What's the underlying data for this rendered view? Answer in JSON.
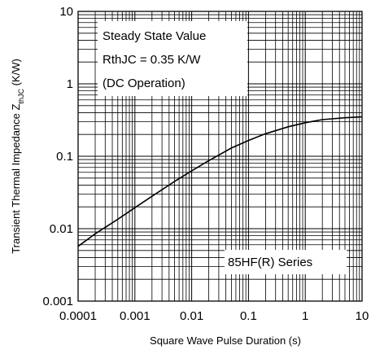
{
  "chart_data": {
    "type": "line",
    "title": "",
    "xlabel": "Square Wave Pulse Duration (s)",
    "ylabel": {
      "main": "Transient Thermal Impedance Z",
      "subscript": "thJC",
      "unit": " (K/W)"
    },
    "x_scale": "log",
    "y_scale": "log",
    "xlim": [
      0.0001,
      10
    ],
    "ylim": [
      0.001,
      10
    ],
    "grid": true,
    "x_ticks": [
      {
        "value": 0.0001,
        "label": "0.0001"
      },
      {
        "value": 0.001,
        "label": "0.001"
      },
      {
        "value": 0.01,
        "label": "0.01"
      },
      {
        "value": 0.1,
        "label": "0.1"
      },
      {
        "value": 1,
        "label": "1"
      },
      {
        "value": 10,
        "label": "10"
      }
    ],
    "y_ticks": [
      {
        "value": 0.001,
        "label": "0.001"
      },
      {
        "value": 0.01,
        "label": "0.01"
      },
      {
        "value": 0.1,
        "label": "0.1"
      },
      {
        "value": 1,
        "label": "1"
      },
      {
        "value": 10,
        "label": "10"
      }
    ],
    "series": [
      {
        "color": "#000000",
        "x": [
          0.0001,
          0.0002,
          0.0005,
          0.001,
          0.002,
          0.005,
          0.01,
          0.02,
          0.05,
          0.1,
          0.2,
          0.5,
          1,
          2,
          5,
          10
        ],
        "y": [
          0.0057,
          0.0085,
          0.0135,
          0.0195,
          0.028,
          0.045,
          0.063,
          0.087,
          0.13,
          0.165,
          0.205,
          0.255,
          0.29,
          0.32,
          0.34,
          0.35
        ]
      }
    ],
    "annotations": [
      {
        "lines": [
          "Steady State Value",
          "RthJC = 0.35 K/W",
          "(DC Operation)"
        ],
        "position": "top-left"
      },
      {
        "lines": [
          "85HF(R) Series"
        ],
        "position": "bottom-right"
      }
    ]
  }
}
